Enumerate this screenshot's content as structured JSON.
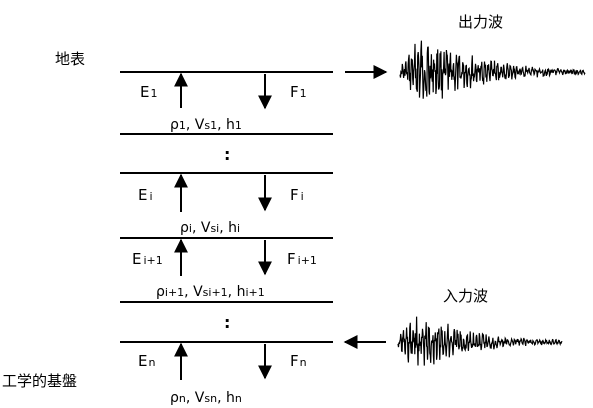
{
  "labels": {
    "surface": "地表",
    "bedrock": "工学的基盤",
    "output_wave": "出力波",
    "input_wave": "入力波",
    "ellipsis": ":"
  },
  "layers": [
    {
      "E": "E",
      "E_sub": "1",
      "F": "F",
      "F_sub": "1",
      "props": {
        "rho": "ρ",
        "rho_sub": "1",
        "sep1": ", V",
        "vs_sub": "s1",
        "sep2": ", h",
        "h_sub": "1"
      }
    },
    {
      "E": "E",
      "E_sub": "i",
      "F": "F",
      "F_sub": "i",
      "props": {
        "rho": "ρ",
        "rho_sub": "i",
        "sep1": ", V",
        "vs_sub": "si",
        "sep2": ", h",
        "h_sub": "i"
      }
    },
    {
      "E": "E",
      "E_sub": "i+1",
      "F": "F",
      "F_sub": "i+1",
      "props": {
        "rho": "ρ",
        "rho_sub": "i+1",
        "sep1": ", V",
        "vs_sub": "si+1",
        "sep2": ", h",
        "h_sub": "i+1"
      }
    },
    {
      "E": "E",
      "E_sub": "n",
      "F": "F",
      "F_sub": "n",
      "props": {
        "rho": "ρ",
        "rho_sub": "n",
        "sep1": ", V",
        "vs_sub": "sn",
        "sep2": ", h",
        "h_sub": "n"
      }
    }
  ],
  "colors": {
    "ink": "#000000",
    "background": "#ffffff"
  }
}
